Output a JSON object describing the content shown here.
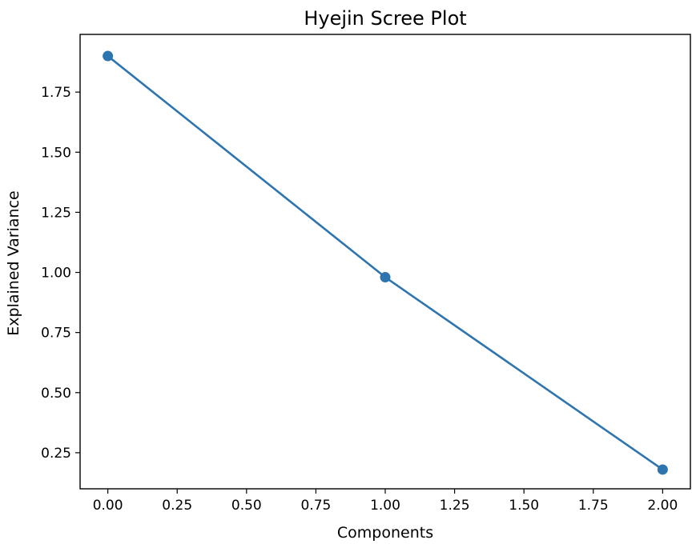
{
  "chart_data": {
    "type": "line",
    "title": "Hyejin Scree Plot",
    "xlabel": "Components",
    "ylabel": "Explained Variance",
    "x": [
      0,
      1,
      2
    ],
    "series": [
      {
        "values": [
          1.9,
          0.98,
          0.18
        ],
        "color": "#2e75b0",
        "marker": "circle"
      }
    ],
    "xlim": [
      -0.1,
      2.1
    ],
    "ylim": [
      0.1,
      1.99
    ],
    "xticks": [
      0.0,
      0.25,
      0.5,
      0.75,
      1.0,
      1.25,
      1.5,
      1.75,
      2.0
    ],
    "xtick_labels": [
      "0.00",
      "0.25",
      "0.50",
      "0.75",
      "1.00",
      "1.25",
      "1.50",
      "1.75",
      "2.00"
    ],
    "yticks": [
      0.25,
      0.5,
      0.75,
      1.0,
      1.25,
      1.5,
      1.75
    ],
    "ytick_labels": [
      "0.25",
      "0.50",
      "0.75",
      "1.00",
      "1.25",
      "1.50",
      "1.75"
    ],
    "grid": false,
    "legend": "none"
  }
}
